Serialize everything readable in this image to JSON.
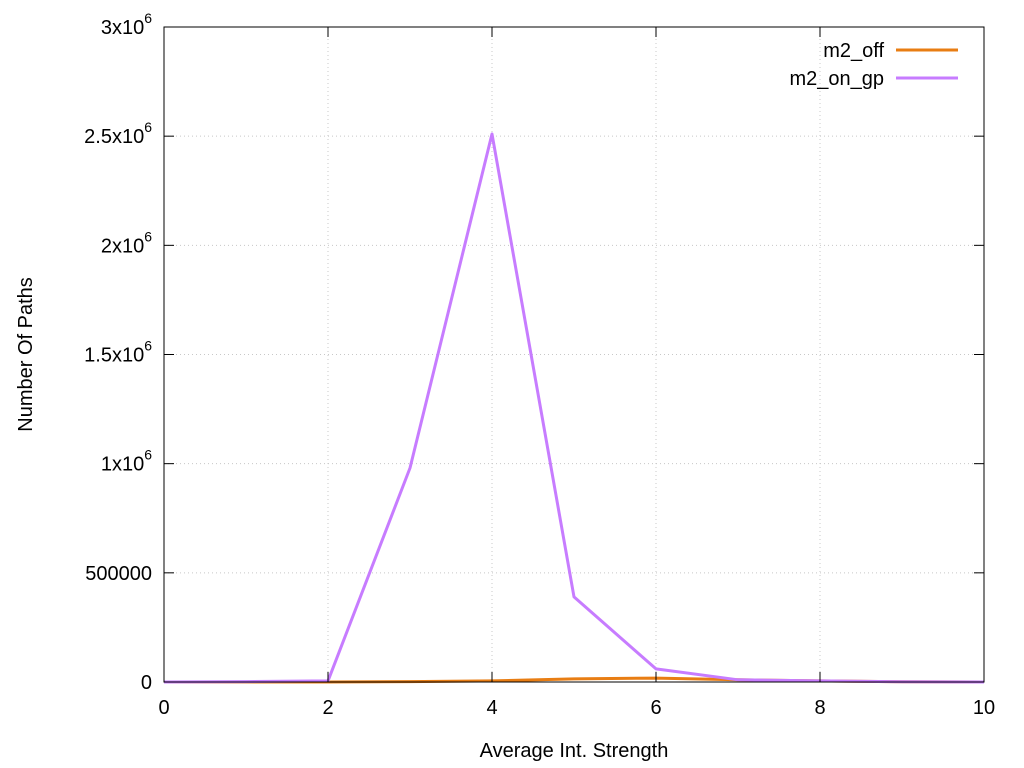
{
  "chart_data": {
    "type": "line",
    "title": "",
    "xlabel": "Average Int. Strength",
    "ylabel": "Number Of Paths",
    "xlim": [
      0,
      10
    ],
    "ylim": [
      0,
      3000000
    ],
    "x_ticks": [
      0,
      2,
      4,
      6,
      8,
      10
    ],
    "x_tick_labels": [
      "0",
      "2",
      "4",
      "6",
      "8",
      "10"
    ],
    "y_ticks": [
      0,
      500000,
      1000000,
      1500000,
      2000000,
      2500000,
      3000000
    ],
    "y_tick_labels": [
      {
        "base": "0",
        "exp": ""
      },
      {
        "base": "500000",
        "exp": ""
      },
      {
        "base": "1x10",
        "exp": "6"
      },
      {
        "base": "1.5x10",
        "exp": "6"
      },
      {
        "base": "2x10",
        "exp": "6"
      },
      {
        "base": "2.5x10",
        "exp": "6"
      },
      {
        "base": "3x10",
        "exp": "6"
      }
    ],
    "grid": true,
    "legend_position": "top-right",
    "series": [
      {
        "name": "m2_off",
        "color": "#e87d13",
        "x": [
          0,
          1,
          2,
          3,
          4,
          5,
          6,
          7,
          8,
          9,
          10
        ],
        "y": [
          0,
          0,
          0,
          2000,
          5000,
          14000,
          18000,
          10000,
          5000,
          1000,
          0
        ]
      },
      {
        "name": "m2_on_gp",
        "color": "#c77cff",
        "x": [
          0,
          1,
          2,
          3,
          4,
          5,
          6,
          7,
          8,
          9,
          10
        ],
        "y": [
          0,
          2000,
          5000,
          980000,
          2510000,
          390000,
          60000,
          10000,
          5000,
          1000,
          0
        ]
      }
    ]
  }
}
